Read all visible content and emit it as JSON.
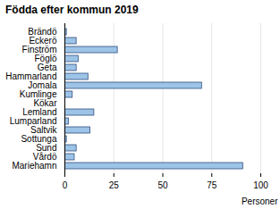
{
  "chart_data": {
    "type": "bar",
    "orientation": "horizontal",
    "title": "Födda efter kommun 2019",
    "categories": [
      "Brändö",
      "Eckerö",
      "Finström",
      "Föglö",
      "Geta",
      "Hammarland",
      "Jomala",
      "Kumlinge",
      "Kökar",
      "Lemland",
      "Lumparland",
      "Saltvik",
      "Sottunga",
      "Sund",
      "Vårdö",
      "Mariehamn"
    ],
    "values": [
      1,
      6,
      27,
      7,
      6,
      12,
      70,
      4,
      0,
      15,
      2,
      13,
      1,
      6,
      5,
      91
    ],
    "color": "#9dc3e6",
    "x_label": "Personer",
    "xlim": [
      0,
      100
    ],
    "xticks": [
      0,
      25,
      50,
      75,
      100
    ],
    "grid": true
  }
}
